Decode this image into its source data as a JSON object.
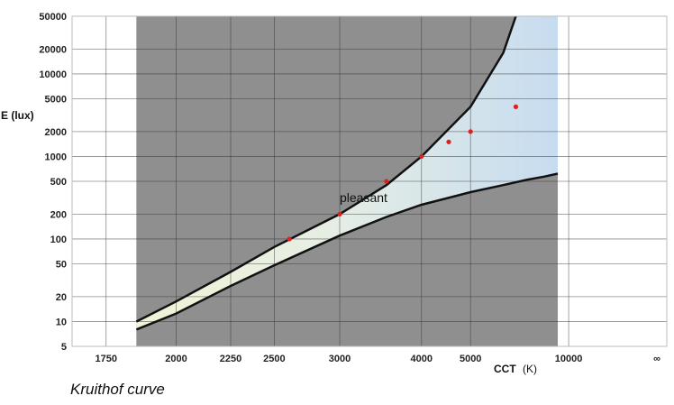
{
  "caption": "Kruithof curve",
  "chart_data": {
    "type": "line",
    "title": "",
    "xlabel_main": "CCT",
    "xlabel_unit": "(K)",
    "ylabel": "E (lux)",
    "x_scale": "reciprocal",
    "y_scale": "log",
    "x_ticks": [
      {
        "value": 1750,
        "label": "1750"
      },
      {
        "value": 2000,
        "label": "2000"
      },
      {
        "value": 2250,
        "label": "2250"
      },
      {
        "value": 2500,
        "label": "2500"
      },
      {
        "value": 3000,
        "label": "3000"
      },
      {
        "value": 4000,
        "label": "4000"
      },
      {
        "value": 5000,
        "label": "5000"
      },
      {
        "value": 10000,
        "label": "10000"
      },
      {
        "value": "inf",
        "label": "∞"
      }
    ],
    "y_ticks": [
      5,
      10,
      20,
      50,
      100,
      200,
      500,
      1000,
      2000,
      5000,
      10000,
      20000,
      50000
    ],
    "xlim": [
      1650,
      "inf"
    ],
    "ylim": [
      5,
      50000
    ],
    "shaded_cct_range": [
      1850,
      9000
    ],
    "series": [
      {
        "role": "upper",
        "x": [
          1850,
          2000,
          2250,
          2500,
          3000,
          3500,
          4000,
          5000,
          6000,
          6500
        ],
        "y": [
          10,
          17.5,
          40,
          80,
          200,
          450,
          1000,
          4000,
          18000,
          50000
        ]
      },
      {
        "role": "lower",
        "x": [
          1850,
          2000,
          2250,
          2500,
          3000,
          3500,
          4000,
          5000,
          6000,
          7000,
          8000,
          9000
        ],
        "y": [
          8,
          12.5,
          27,
          48,
          110,
          185,
          260,
          370,
          450,
          520,
          570,
          620
        ]
      }
    ],
    "points": {
      "x": [
        2600,
        3000,
        3500,
        4000,
        4500,
        5000,
        6500
      ],
      "y": [
        100,
        200,
        500,
        1000,
        1500,
        2000,
        4000
      ]
    },
    "annotations": [
      {
        "text": "pleasant",
        "x": 3000,
        "y": 280
      }
    ],
    "grid": true,
    "colors": {
      "dark_region": "#8f8f8f",
      "grid": "#2f2f2f",
      "pleasant_warm": "#f1f3d6",
      "pleasant_cool": "#c7dcf0",
      "curve": "#111111",
      "point": "#e02020"
    }
  }
}
